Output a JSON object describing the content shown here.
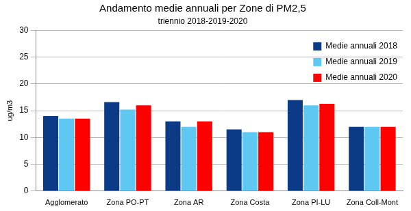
{
  "chart_data": {
    "type": "bar",
    "title": "Andamento medie annuali per Zone di PM2,5",
    "subtitle": "triennio 2018-2019-2020",
    "y_label": "ug/m3",
    "categories": [
      "Agglomerato",
      "Zona PO-PT",
      "Zona AR",
      "Zona Costa",
      "Zona PI-LU",
      "Zona Coll-Mont"
    ],
    "series": [
      {
        "name": "Medie annuali 2018",
        "color": "#0b3a86",
        "values": [
          14,
          16.6,
          13,
          11.5,
          17,
          12
        ]
      },
      {
        "name": "Medie annuali 2019",
        "color": "#5ec8f2",
        "values": [
          13.5,
          15.2,
          12,
          11,
          16,
          12
        ]
      },
      {
        "name": "Medie annuali 2020",
        "color": "#ff0000",
        "values": [
          13.5,
          16,
          13,
          11,
          16.3,
          12
        ]
      }
    ],
    "ylim": [
      0,
      30
    ],
    "yticks": [
      0,
      5,
      10,
      15,
      20,
      25,
      30
    ],
    "grid": true,
    "legend": "upper right"
  }
}
